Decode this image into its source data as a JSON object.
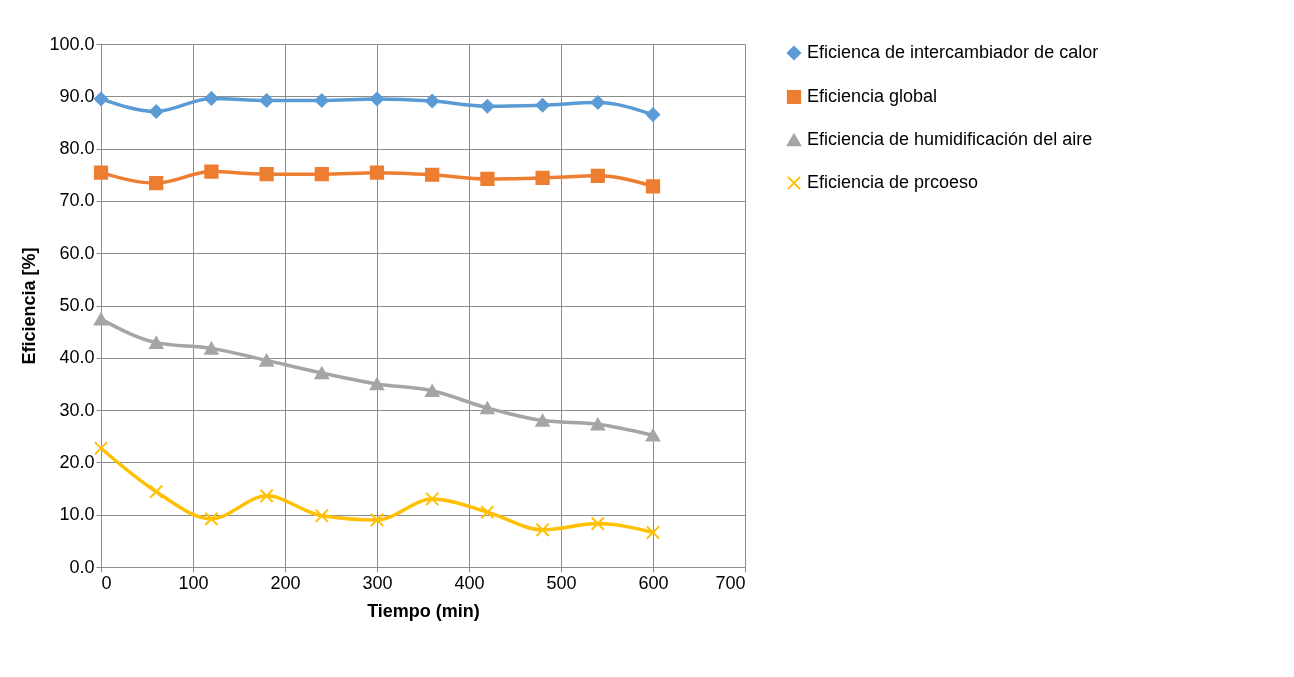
{
  "chart_data": {
    "type": "line",
    "xlabel": "Tiempo (min)",
    "ylabel": "Eficiencia [%]",
    "x": [
      0,
      60,
      120,
      180,
      240,
      300,
      360,
      420,
      480,
      540,
      600
    ],
    "xlim": [
      0,
      700
    ],
    "xticks": [
      0,
      100,
      200,
      300,
      400,
      500,
      600,
      700
    ],
    "ylim": [
      0,
      100
    ],
    "yticks": [
      {
        "value": 0,
        "label": "0.0"
      },
      {
        "value": 10,
        "label": "10.0"
      },
      {
        "value": 20,
        "label": "20.0"
      },
      {
        "value": 30,
        "label": "30.0"
      },
      {
        "value": 40,
        "label": "40.0"
      },
      {
        "value": 50,
        "label": "50.0"
      },
      {
        "value": 60,
        "label": "60.0"
      },
      {
        "value": 70,
        "label": "70.0"
      },
      {
        "value": 80,
        "label": "80.0"
      },
      {
        "value": 90,
        "label": "90.0"
      },
      {
        "value": 100,
        "label": "100.0"
      }
    ],
    "grid": true,
    "legend": "right",
    "series": [
      {
        "name": "Eficienca de intercambiador de calor",
        "color": "#5b9bd5",
        "marker": "diamond",
        "values": [
          89.5,
          87.1,
          89.6,
          89.2,
          89.2,
          89.5,
          89.1,
          88.1,
          88.3,
          88.8,
          86.5
        ]
      },
      {
        "name": "Eficiencia global",
        "color": "#ed7d31",
        "marker": "square",
        "values": [
          75.4,
          73.4,
          75.6,
          75.1,
          75.1,
          75.4,
          75.0,
          74.2,
          74.4,
          74.8,
          72.8
        ]
      },
      {
        "name": "Eficiencia de humidificación del aire",
        "color": "#a5a5a5",
        "marker": "triangle",
        "values": [
          47.4,
          42.9,
          41.8,
          39.5,
          37.1,
          35.0,
          33.7,
          30.4,
          28.0,
          27.3,
          25.2
        ]
      },
      {
        "name": "Eficiencia de prcoeso",
        "color": "#ffc000",
        "marker": "cross",
        "values": [
          22.7,
          14.4,
          9.2,
          13.6,
          9.8,
          9.0,
          13.0,
          10.5,
          7.1,
          8.3,
          6.6
        ]
      }
    ]
  }
}
